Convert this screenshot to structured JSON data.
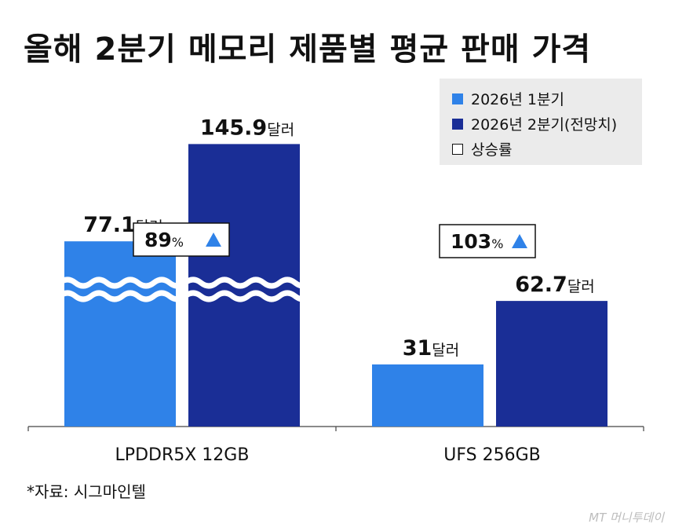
{
  "title": "올해 2분기 메모리 제품별 평균 판매 가격",
  "legend": {
    "q1": "2026년 1분기",
    "q2": "2026년 2분기(전망치)",
    "growth": "상승률"
  },
  "source": "*자료: 시그마인텔",
  "brand": "MT 머니투데이",
  "colors": {
    "q1": "#2f82e8",
    "q2": "#1a2e96",
    "arrow": "#2f82e8",
    "wave": "#ffffff"
  },
  "chart_data": {
    "type": "bar",
    "categories": [
      "LPDDR5X 12GB",
      "UFS 256GB"
    ],
    "unit": "달러",
    "series": [
      {
        "name": "2026년 1분기",
        "values": [
          77.1,
          31
        ]
      },
      {
        "name": "2026년 2분기(전망치)",
        "values": [
          145.9,
          62.7
        ]
      }
    ],
    "growth": [
      "89",
      "103"
    ],
    "growth_unit": "%",
    "value_labels": [
      [
        "77.1",
        "31"
      ],
      [
        "145.9",
        "62.7"
      ]
    ],
    "axis_break": "LPDDR5X 12GB"
  }
}
